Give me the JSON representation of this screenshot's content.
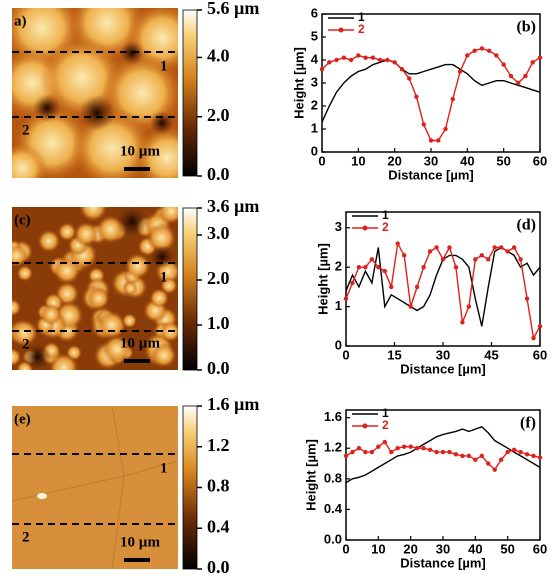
{
  "afm_panels": [
    {
      "label": "a)",
      "profile_labels": [
        "1",
        "2"
      ],
      "scale_bar": "10 µm",
      "colorbar": {
        "lim": [
          0,
          5.6
        ],
        "ticks": [
          {
            "value": 5.6,
            "label": "5.6 µm"
          },
          {
            "value": 4,
            "label": "4.0"
          },
          {
            "value": 2,
            "label": "2.0"
          },
          {
            "value": 0,
            "label": "0.0"
          }
        ]
      }
    },
    {
      "label": "(c)",
      "profile_labels": [
        "1",
        "2"
      ],
      "scale_bar": "10 µm",
      "colorbar": {
        "lim": [
          0,
          3.6
        ],
        "ticks": [
          {
            "value": 3.6,
            "label": "3.6 µm"
          },
          {
            "value": 3,
            "label": "3.0"
          },
          {
            "value": 2,
            "label": "2.0"
          },
          {
            "value": 1,
            "label": "1.0"
          },
          {
            "value": 0,
            "label": "0.0"
          }
        ]
      }
    },
    {
      "label": "(e)",
      "profile_labels": [
        "1",
        "2"
      ],
      "scale_bar": "10 µm",
      "colorbar": {
        "lim": [
          0,
          1.6
        ],
        "ticks": [
          {
            "value": 1.6,
            "label": "1.6 µm"
          },
          1.2,
          0.8,
          0.4,
          {
            "value": 0,
            "label": "0.0"
          }
        ]
      }
    }
  ],
  "chart_data": [
    {
      "type": "line",
      "label": "(b)",
      "xlabel": "Distance [µm]",
      "ylabel": "Height [µm]",
      "x": [
        0,
        2,
        4,
        6,
        8,
        10,
        12,
        14,
        16,
        18,
        20,
        22,
        24,
        26,
        28,
        30,
        32,
        34,
        36,
        38,
        40,
        42,
        44,
        46,
        48,
        50,
        52,
        54,
        56,
        58,
        60
      ],
      "xlim": [
        0,
        60
      ],
      "xticks": [
        0,
        10,
        20,
        30,
        40,
        50,
        60
      ],
      "ylim": [
        0,
        6
      ],
      "yticks": [
        0,
        1,
        2,
        3,
        4,
        5,
        6
      ],
      "series": [
        {
          "name": "1",
          "color": "#000000",
          "values": [
            1.3,
            2.0,
            2.6,
            3.0,
            3.3,
            3.5,
            3.6,
            3.8,
            3.9,
            4.0,
            3.9,
            3.6,
            3.4,
            3.4,
            3.5,
            3.6,
            3.7,
            3.8,
            3.8,
            3.6,
            3.4,
            3.1,
            2.9,
            3.0,
            3.1,
            3.1,
            3.0,
            2.9,
            2.8,
            2.7,
            2.6
          ]
        },
        {
          "name": "2",
          "color": "#e0201b",
          "marker": "circle",
          "values": [
            3.6,
            3.9,
            4.0,
            4.1,
            4.0,
            4.2,
            4.1,
            4.1,
            4.0,
            4.0,
            3.9,
            3.6,
            3.2,
            2.4,
            1.2,
            0.5,
            0.5,
            1.0,
            2.3,
            3.5,
            4.2,
            4.4,
            4.5,
            4.4,
            4.2,
            3.8,
            3.3,
            3.0,
            3.3,
            3.9,
            4.1
          ]
        }
      ]
    },
    {
      "type": "line",
      "label": "(d)",
      "xlabel": "Distance [µm]",
      "ylabel": "Height [µm]",
      "x": [
        0,
        2,
        4,
        6,
        8,
        10,
        12,
        14,
        16,
        18,
        20,
        22,
        24,
        26,
        28,
        30,
        32,
        34,
        36,
        38,
        40,
        42,
        44,
        46,
        48,
        50,
        52,
        54,
        56,
        58,
        60
      ],
      "xlim": [
        0,
        60
      ],
      "xticks": [
        0,
        15,
        30,
        45,
        60
      ],
      "ylim": [
        0,
        3.4
      ],
      "yticks": [
        0,
        1,
        2,
        3
      ],
      "series": [
        {
          "name": "1",
          "color": "#000000",
          "values": [
            1.4,
            1.8,
            1.5,
            1.9,
            1.6,
            2.5,
            1.0,
            1.3,
            1.2,
            1.1,
            1.0,
            0.9,
            1.0,
            1.3,
            1.8,
            2.2,
            2.3,
            2.3,
            2.2,
            2.0,
            1.2,
            0.5,
            1.5,
            2.4,
            2.5,
            2.4,
            2.3,
            2.0,
            2.1,
            1.8,
            2.0
          ]
        },
        {
          "name": "2",
          "color": "#e0201b",
          "marker": "circle",
          "values": [
            1.2,
            1.6,
            2.0,
            2.0,
            2.2,
            2.0,
            1.9,
            1.5,
            2.6,
            2.3,
            1.0,
            1.5,
            2.0,
            2.4,
            2.5,
            2.2,
            2.5,
            2.0,
            0.6,
            1.0,
            2.2,
            2.3,
            2.2,
            2.5,
            2.5,
            2.4,
            2.5,
            2.2,
            1.2,
            0.2,
            0.5
          ]
        }
      ]
    },
    {
      "type": "line",
      "label": "(f)",
      "xlabel": "Distance [µm]",
      "ylabel": "Height [µm]",
      "x": [
        0,
        2,
        4,
        6,
        8,
        10,
        12,
        14,
        16,
        18,
        20,
        22,
        24,
        26,
        28,
        30,
        32,
        34,
        36,
        38,
        40,
        42,
        44,
        46,
        48,
        50,
        52,
        54,
        56,
        58,
        60
      ],
      "xlim": [
        0,
        60
      ],
      "xticks": [
        0,
        10,
        20,
        30,
        40,
        50,
        60
      ],
      "ylim": [
        0,
        1.7
      ],
      "yticks": [
        {
          "value": 0,
          "label": "0.0"
        },
        0.4,
        0.8,
        1.2,
        1.6
      ],
      "series": [
        {
          "name": "1",
          "color": "#000000",
          "values": [
            0.75,
            0.8,
            0.82,
            0.85,
            0.9,
            0.95,
            1.0,
            1.05,
            1.1,
            1.12,
            1.15,
            1.2,
            1.25,
            1.3,
            1.35,
            1.38,
            1.4,
            1.42,
            1.45,
            1.42,
            1.45,
            1.48,
            1.4,
            1.3,
            1.25,
            1.2,
            1.15,
            1.1,
            1.05,
            1.0,
            0.95
          ]
        },
        {
          "name": "2",
          "color": "#e0201b",
          "marker": "circle",
          "values": [
            1.1,
            1.15,
            1.2,
            1.15,
            1.15,
            1.22,
            1.28,
            1.15,
            1.2,
            1.22,
            1.22,
            1.2,
            1.2,
            1.18,
            1.15,
            1.15,
            1.15,
            1.12,
            1.1,
            1.1,
            1.05,
            1.1,
            1.0,
            0.92,
            1.05,
            1.15,
            1.18,
            1.15,
            1.12,
            1.1,
            1.08
          ]
        }
      ]
    }
  ]
}
